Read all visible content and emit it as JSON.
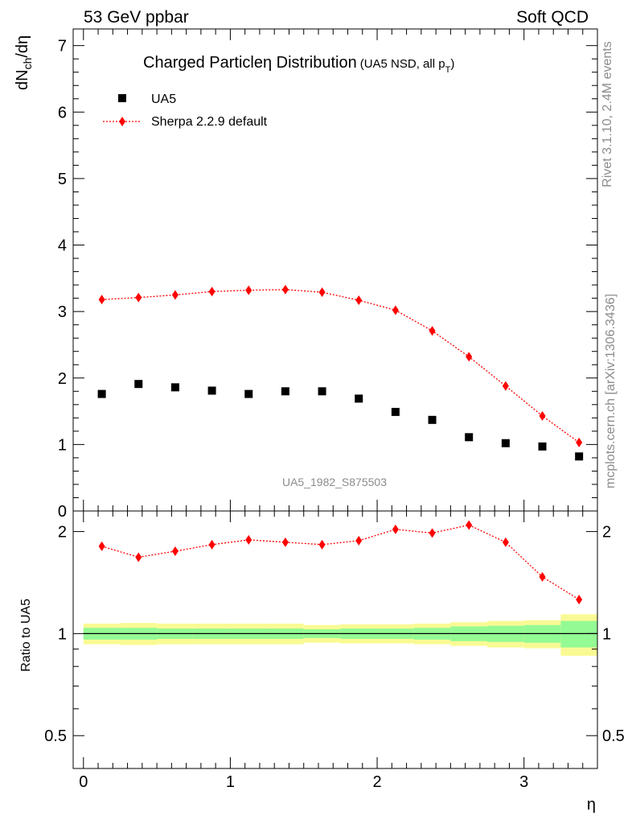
{
  "header": {
    "left": "53 GeV ppbar",
    "right": "Soft QCD"
  },
  "side_text": {
    "rivet": "Rivet 3.1.10,  2.4M events",
    "mcplots": "mcplots.cern.ch [arXiv:1306.3436]"
  },
  "chart_data": {
    "type": "scatter",
    "title": "Charged Particle",
    "title_symbol": "η",
    "title_tail": " Distribution",
    "subtitle": "(UA5 NSD, all p",
    "subtitle_sub": "T",
    "subtitle_end": ")",
    "analysis_id": "UA5_1982_S875503",
    "xlabel": "η",
    "ylabel": "dN",
    "ylabel_sub": "ch",
    "ylabel_end": "/dη",
    "ratio_ylabel": "Ratio to UA5",
    "xlim": [
      -0.07,
      3.5
    ],
    "ylim": [
      0,
      7.25
    ],
    "ratio_ylim": [
      0.4,
      2.3
    ],
    "ratio_log": true,
    "x": [
      0.125,
      0.375,
      0.625,
      0.875,
      1.125,
      1.375,
      1.625,
      1.875,
      2.125,
      2.375,
      2.625,
      2.875,
      3.125,
      3.375
    ],
    "series": [
      {
        "name": "UA5",
        "marker": "square",
        "color": "#000000",
        "values": [
          1.76,
          1.91,
          1.86,
          1.81,
          1.76,
          1.8,
          1.8,
          1.69,
          1.49,
          1.37,
          1.11,
          1.02,
          0.97,
          0.82
        ]
      },
      {
        "name": "Sherpa 2.2.9 default",
        "marker": "diamond",
        "color": "#ff0000",
        "line": "dotted",
        "values": [
          3.18,
          3.21,
          3.25,
          3.3,
          3.32,
          3.33,
          3.29,
          3.17,
          3.02,
          2.71,
          2.32,
          1.88,
          1.43,
          1.03
        ]
      }
    ],
    "ratio": {
      "values": [
        1.81,
        1.68,
        1.75,
        1.83,
        1.89,
        1.86,
        1.83,
        1.88,
        2.03,
        1.98,
        2.09,
        1.86,
        1.47,
        1.26
      ],
      "bin_edges": [
        0,
        0.25,
        0.5,
        0.75,
        1.0,
        1.25,
        1.5,
        1.75,
        2.0,
        2.25,
        2.5,
        2.75,
        3.0,
        3.25,
        3.5
      ],
      "stat_band": [
        0.04,
        0.04,
        0.035,
        0.035,
        0.035,
        0.035,
        0.03,
        0.035,
        0.035,
        0.04,
        0.05,
        0.055,
        0.06,
        0.09
      ],
      "total_band": [
        0.07,
        0.075,
        0.07,
        0.07,
        0.07,
        0.07,
        0.06,
        0.065,
        0.065,
        0.07,
        0.08,
        0.09,
        0.095,
        0.14
      ]
    },
    "x_ticks": [
      "0",
      "1",
      "2",
      "3"
    ],
    "y_ticks": [
      "0",
      "1",
      "2",
      "3",
      "4",
      "5",
      "6",
      "7"
    ],
    "ratio_ticks": [
      "0.5",
      "1",
      "2"
    ],
    "colors": {
      "stat_band": "#94fa94",
      "total_band": "#fafa94",
      "analysis_id": "#8c8c8c"
    }
  }
}
